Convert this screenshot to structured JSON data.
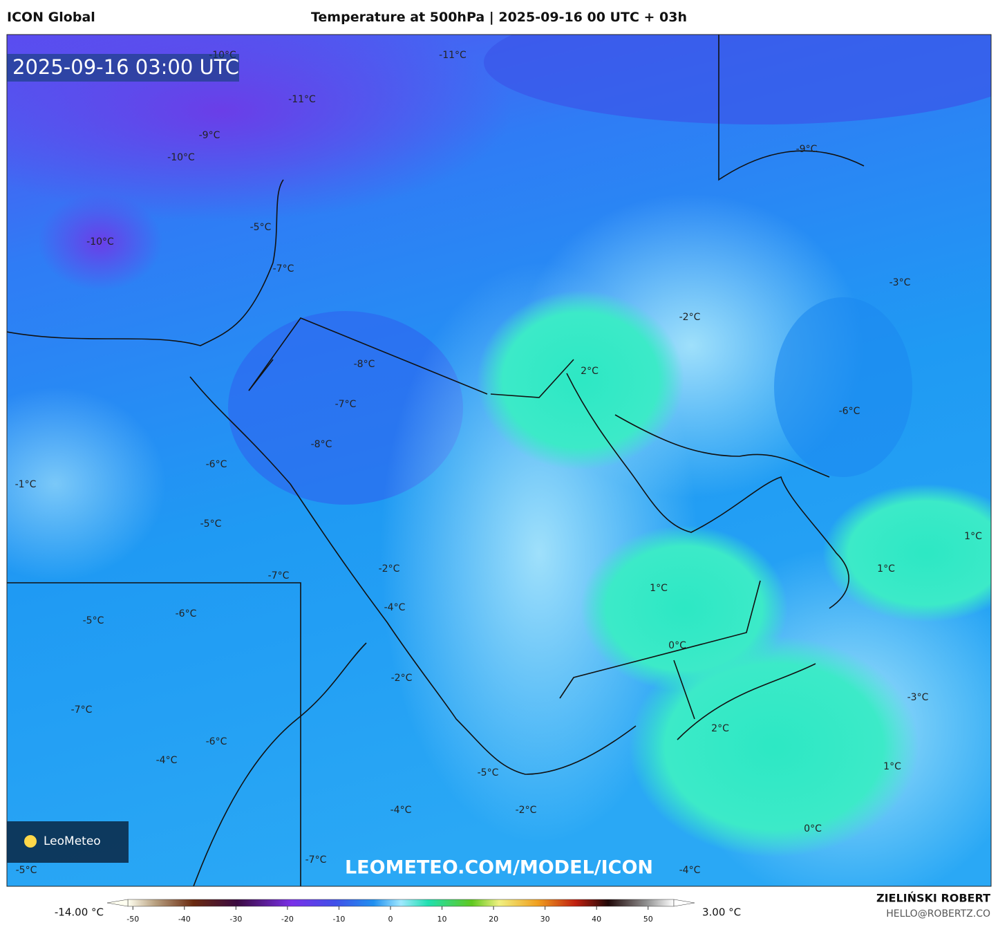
{
  "header": {
    "model": "ICON Global",
    "title": "Temperature at 500hPa | 2025-09-16 00 UTC + 03h"
  },
  "timestamp": "2025-09-16 03:00 UTC",
  "contour_labels": [
    "-10°C",
    "-11°C",
    "-11°C",
    "-9°C",
    "-10°C",
    "-9°C",
    "-10°C",
    "-5°C",
    "-7°C",
    "-3°C",
    "-2°C",
    "-8°C",
    "2°C",
    "-7°C",
    "-6°C",
    "-8°C",
    "-6°C",
    "-1°C",
    "-5°C",
    "1°C",
    "-7°C",
    "-2°C",
    "1°C",
    "1°C",
    "-4°C",
    "-6°C",
    "-5°C",
    "0°C",
    "-2°C",
    "-3°C",
    "-7°C",
    "2°C",
    "-6°C",
    "-4°C",
    "1°C",
    "-5°C",
    "-4°C",
    "-2°C",
    "0°C",
    "-7°C",
    "-4°C",
    "-5°C"
  ],
  "watermark": "LEOMETEO.COM/MODEL/ICON",
  "logo": "LeoMeteo",
  "colorbar": {
    "min_label": "-14.00 °C",
    "max_label": "3.00 °C",
    "lim": [
      -55,
      55
    ],
    "ticks": [
      -50,
      -40,
      -30,
      -20,
      -10,
      0,
      10,
      20,
      30,
      40,
      50
    ]
  },
  "credits": {
    "name": "ZIELIŃSKI ROBERT",
    "email": "HELLO@ROBERTZ.CO"
  }
}
